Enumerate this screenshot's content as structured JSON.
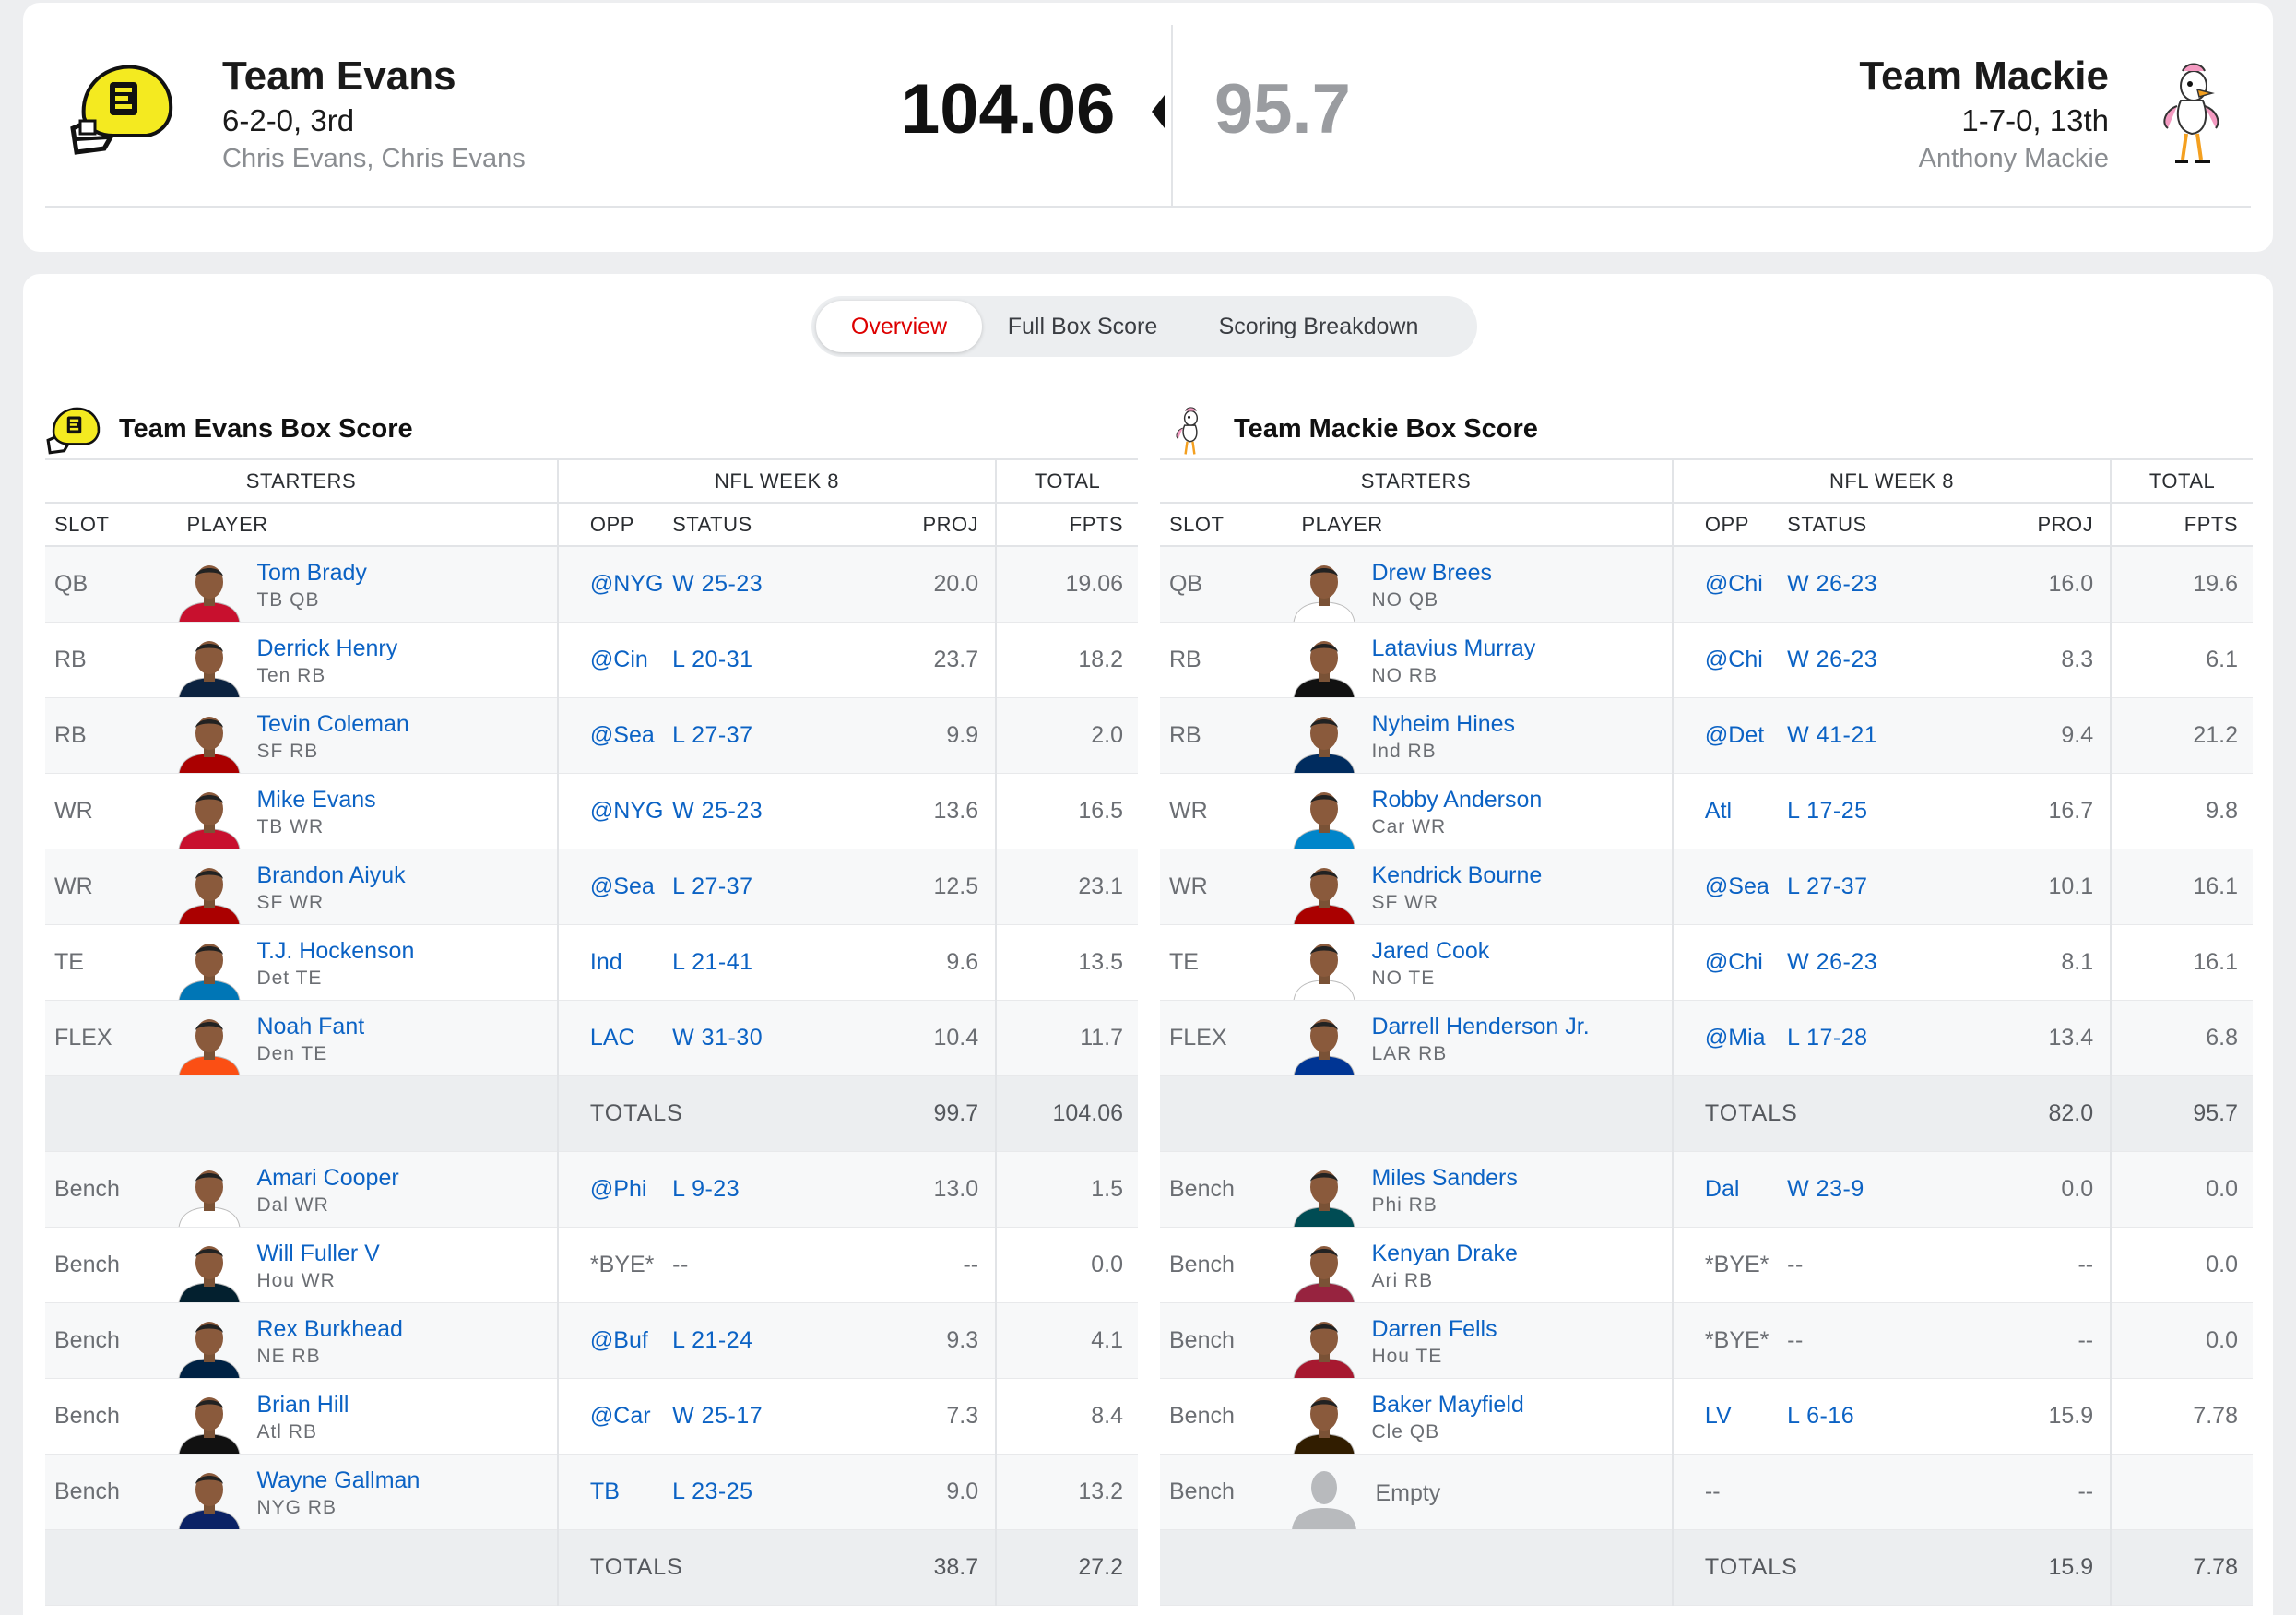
{
  "matchup": {
    "home": {
      "name": "Team Evans",
      "record": "6-2-0, 3rd",
      "owner": "Chris Evans, Chris Evans",
      "score": "104.06"
    },
    "away": {
      "name": "Team Mackie",
      "record": "1-7-0, 13th",
      "owner": "Anthony Mackie",
      "score": "95.7"
    }
  },
  "tabs": [
    {
      "label": "Overview",
      "active": true
    },
    {
      "label": "Full Box Score",
      "active": false
    },
    {
      "label": "Scoring Breakdown",
      "active": false
    }
  ],
  "table_headers": {
    "starters": "STARTERS",
    "week": "NFL WEEK 8",
    "total": "TOTAL",
    "slot": "SLOT",
    "player": "PLAYER",
    "opp": "OPP",
    "status": "STATUS",
    "proj": "PROJ",
    "fpts": "FPTS",
    "totals_label": "TOTALS"
  },
  "boxes": [
    {
      "title": "Team Evans Box Score",
      "starters": [
        {
          "slot": "QB",
          "name": "Tom Brady",
          "meta": "TB  QB",
          "opp": "@NYG",
          "status": "W 25-23",
          "proj": "20.0",
          "fpts": "19.06",
          "jersey": "#c8102e"
        },
        {
          "slot": "RB",
          "name": "Derrick Henry",
          "meta": "Ten  RB",
          "opp": "@Cin",
          "status": "L 20-31",
          "proj": "23.7",
          "fpts": "18.2",
          "jersey": "#0c2340"
        },
        {
          "slot": "RB",
          "name": "Tevin Coleman",
          "meta": "SF  RB",
          "opp": "@Sea",
          "status": "L 27-37",
          "proj": "9.9",
          "fpts": "2.0",
          "jersey": "#aa0000"
        },
        {
          "slot": "WR",
          "name": "Mike Evans",
          "meta": "TB  WR",
          "opp": "@NYG",
          "status": "W 25-23",
          "proj": "13.6",
          "fpts": "16.5",
          "jersey": "#c8102e"
        },
        {
          "slot": "WR",
          "name": "Brandon Aiyuk",
          "meta": "SF  WR",
          "opp": "@Sea",
          "status": "L 27-37",
          "proj": "12.5",
          "fpts": "23.1",
          "jersey": "#aa0000"
        },
        {
          "slot": "TE",
          "name": "T.J. Hockenson",
          "meta": "Det  TE",
          "opp": "Ind",
          "status": "L 21-41",
          "proj": "9.6",
          "fpts": "13.5",
          "jersey": "#0076b6"
        },
        {
          "slot": "FLEX",
          "name": "Noah Fant",
          "meta": "Den  TE",
          "opp": "LAC",
          "status": "W 31-30",
          "proj": "10.4",
          "fpts": "11.7",
          "jersey": "#fb4f14"
        }
      ],
      "starter_totals": {
        "proj": "99.7",
        "fpts": "104.06"
      },
      "bench": [
        {
          "slot": "Bench",
          "name": "Amari Cooper",
          "meta": "Dal  WR",
          "opp": "@Phi",
          "status": "L 9-23",
          "proj": "13.0",
          "fpts": "1.5",
          "jersey": "#ffffff"
        },
        {
          "slot": "Bench",
          "name": "Will Fuller V",
          "meta": "Hou  WR",
          "opp": "*BYE*",
          "status": "--",
          "proj": "--",
          "fpts": "0.0",
          "jersey": "#03202f",
          "bye": true
        },
        {
          "slot": "Bench",
          "name": "Rex Burkhead",
          "meta": "NE  RB",
          "opp": "@Buf",
          "status": "L 21-24",
          "proj": "9.3",
          "fpts": "4.1",
          "jersey": "#002244"
        },
        {
          "slot": "Bench",
          "name": "Brian Hill",
          "meta": "Atl  RB",
          "opp": "@Car",
          "status": "W 25-17",
          "proj": "7.3",
          "fpts": "8.4",
          "jersey": "#111111"
        },
        {
          "slot": "Bench",
          "name": "Wayne Gallman",
          "meta": "NYG  RB",
          "opp": "TB",
          "status": "L 23-25",
          "proj": "9.0",
          "fpts": "13.2",
          "jersey": "#0b2265"
        }
      ],
      "bench_totals": {
        "proj": "38.7",
        "fpts": "27.2"
      }
    },
    {
      "title": "Team Mackie Box Score",
      "starters": [
        {
          "slot": "QB",
          "name": "Drew Brees",
          "meta": "NO  QB",
          "opp": "@Chi",
          "status": "W 26-23",
          "proj": "16.0",
          "fpts": "19.6",
          "jersey": "#ffffff"
        },
        {
          "slot": "RB",
          "name": "Latavius Murray",
          "meta": "NO  RB",
          "opp": "@Chi",
          "status": "W 26-23",
          "proj": "8.3",
          "fpts": "6.1",
          "jersey": "#111111"
        },
        {
          "slot": "RB",
          "name": "Nyheim Hines",
          "meta": "Ind  RB",
          "opp": "@Det",
          "status": "W 41-21",
          "proj": "9.4",
          "fpts": "21.2",
          "jersey": "#002c5f"
        },
        {
          "slot": "WR",
          "name": "Robby Anderson",
          "meta": "Car  WR",
          "opp": "Atl",
          "status": "L 17-25",
          "proj": "16.7",
          "fpts": "9.8",
          "jersey": "#0085ca"
        },
        {
          "slot": "WR",
          "name": "Kendrick Bourne",
          "meta": "SF  WR",
          "opp": "@Sea",
          "status": "L 27-37",
          "proj": "10.1",
          "fpts": "16.1",
          "jersey": "#aa0000"
        },
        {
          "slot": "TE",
          "name": "Jared Cook",
          "meta": "NO  TE",
          "opp": "@Chi",
          "status": "W 26-23",
          "proj": "8.1",
          "fpts": "16.1",
          "jersey": "#ffffff"
        },
        {
          "slot": "FLEX",
          "name": "Darrell Henderson Jr.",
          "meta": "LAR  RB",
          "opp": "@Mia",
          "status": "L 17-28",
          "proj": "13.4",
          "fpts": "6.8",
          "jersey": "#003594"
        }
      ],
      "starter_totals": {
        "proj": "82.0",
        "fpts": "95.7"
      },
      "bench": [
        {
          "slot": "Bench",
          "name": "Miles Sanders",
          "meta": "Phi  RB",
          "opp": "Dal",
          "status": "W 23-9",
          "proj": "0.0",
          "fpts": "0.0",
          "jersey": "#004c54"
        },
        {
          "slot": "Bench",
          "name": "Kenyan Drake",
          "meta": "Ari  RB",
          "opp": "*BYE*",
          "status": "--",
          "proj": "--",
          "fpts": "0.0",
          "jersey": "#97233f",
          "bye": true
        },
        {
          "slot": "Bench",
          "name": "Darren Fells",
          "meta": "Hou  TE",
          "opp": "*BYE*",
          "status": "--",
          "proj": "--",
          "fpts": "0.0",
          "jersey": "#a71930",
          "bye": true
        },
        {
          "slot": "Bench",
          "name": "Baker Mayfield",
          "meta": "Cle  QB",
          "opp": "LV",
          "status": "L 6-16",
          "proj": "15.9",
          "fpts": "7.78",
          "jersey": "#311d00"
        },
        {
          "slot": "Bench",
          "name": "",
          "empty_label": "Empty",
          "meta": "",
          "opp": "--",
          "status": "",
          "proj": "--",
          "fpts": "",
          "empty": true
        }
      ],
      "bench_totals": {
        "proj": "15.9",
        "fpts": "7.78"
      }
    }
  ]
}
